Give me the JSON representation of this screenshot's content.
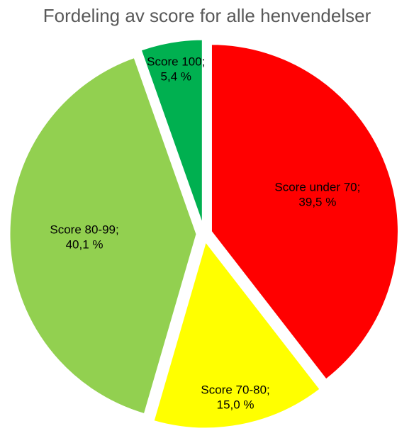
{
  "chart_data": {
    "type": "pie",
    "title": "Fordeling av score for alle henvendelser",
    "categories": [
      "Score under 70;",
      "Score 70-80;",
      "Score 80-99;",
      "Score 100;"
    ],
    "values": [
      39.5,
      15.0,
      40.1,
      5.4
    ],
    "value_labels": [
      "39,5 %",
      "15,0 %",
      "40,1 %",
      "5,4 %"
    ],
    "colors": [
      "#ff0000",
      "#ffff00",
      "#92d050",
      "#00b050"
    ]
  }
}
